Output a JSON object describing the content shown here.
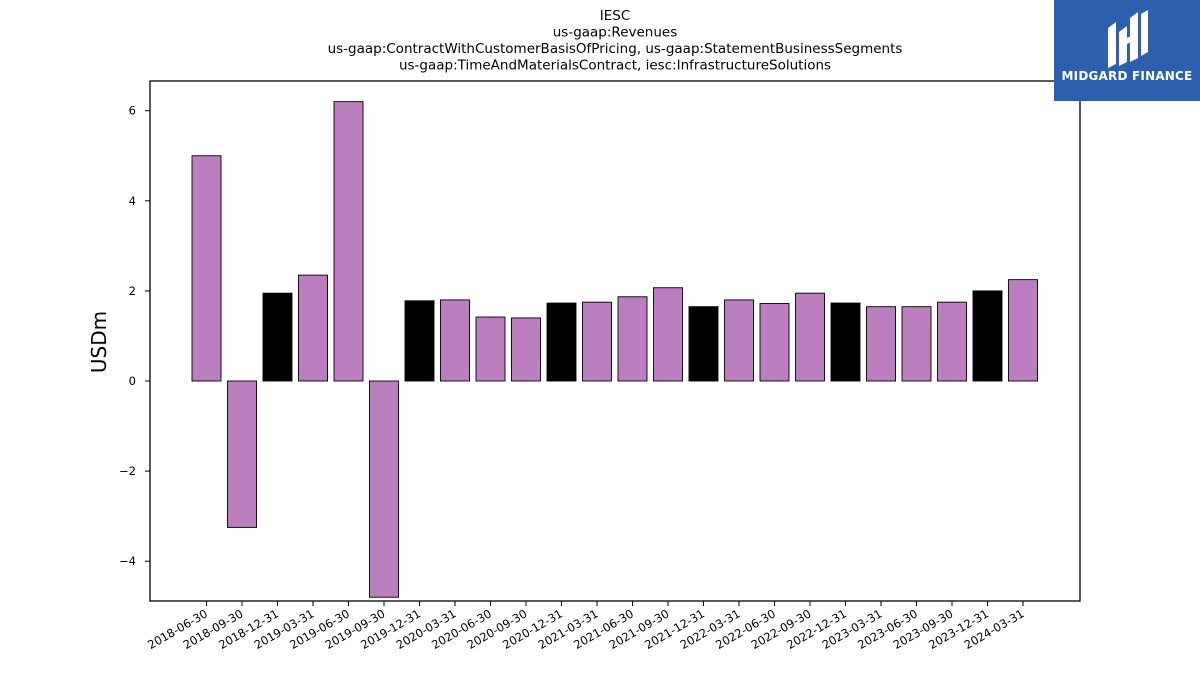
{
  "chart_data": {
    "type": "bar",
    "title_lines": [
      "IESC",
      "us-gaap:Revenues",
      "us-gaap:ContractWithCustomerBasisOfPricing, us-gaap:StatementBusinessSegments",
      "us-gaap:TimeAndMaterialsContract, iesc:InfrastructureSolutions"
    ],
    "ylabel": "USDm",
    "xlabel": "",
    "ylim": [
      -4.8,
      6.2
    ],
    "yticks": [
      -4,
      -2,
      0,
      2,
      4,
      6
    ],
    "ytick_labels": [
      "−4",
      "−2",
      "0",
      "2",
      "4",
      "6"
    ],
    "grid": false,
    "categories": [
      "2018-06-30",
      "2018-09-30",
      "2018-12-31",
      "2019-03-31",
      "2019-06-30",
      "2019-09-30",
      "2019-12-31",
      "2020-03-31",
      "2020-06-30",
      "2020-09-30",
      "2020-12-31",
      "2021-03-31",
      "2021-06-30",
      "2021-09-30",
      "2021-12-31",
      "2022-03-31",
      "2022-06-30",
      "2022-09-30",
      "2022-12-31",
      "2023-03-31",
      "2023-06-30",
      "2023-09-30",
      "2023-12-31",
      "2024-03-31"
    ],
    "values": [
      5.0,
      -3.25,
      1.95,
      2.35,
      6.2,
      -4.8,
      1.78,
      1.8,
      1.42,
      1.4,
      1.73,
      1.75,
      1.87,
      2.07,
      1.65,
      1.8,
      1.72,
      1.95,
      1.73,
      1.65,
      1.65,
      1.75,
      2.0,
      2.25
    ],
    "highlighted": [
      false,
      false,
      true,
      false,
      false,
      false,
      true,
      false,
      false,
      false,
      true,
      false,
      false,
      false,
      true,
      false,
      false,
      false,
      true,
      false,
      false,
      false,
      true,
      false
    ],
    "colors": {
      "bar": "#bb7fbf",
      "highlight": "#000000",
      "edge": "#000000"
    }
  },
  "brand": {
    "name": "MIDGARD FINANCE",
    "background": "#2c5fae",
    "logo_icon": "midgard-logo-icon"
  }
}
